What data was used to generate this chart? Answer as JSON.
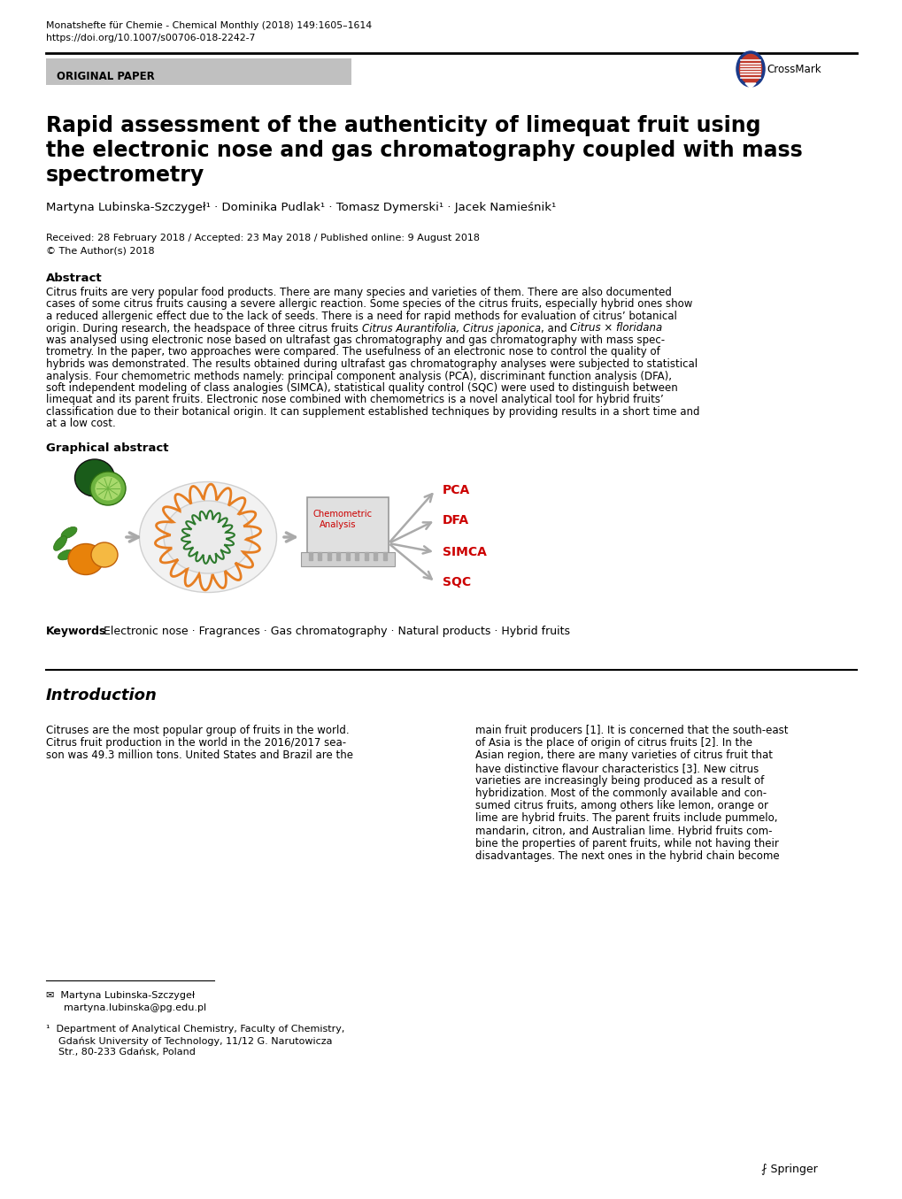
{
  "journal_line1": "Monatshefte für Chemie - Chemical Monthly (2018) 149:1605–1614",
  "journal_line2": "https://doi.org/10.1007/s00706-018-2242-7",
  "original_paper": "ORIGINAL PAPER",
  "title_line1": "Rapid assessment of the authenticity of limequat fruit using",
  "title_line2": "the electronic nose and gas chromatography coupled with mass",
  "title_line3": "spectrometry",
  "authors": "Martyna Lubinska-Szczygeł¹ · Dominika Pudlak¹ · Tomasz Dymerski¹ · Jacek Namieśnik¹",
  "received": "Received: 28 February 2018 / Accepted: 23 May 2018 / Published online: 9 August 2018",
  "copyright": "© The Author(s) 2018",
  "abstract_title": "Abstract",
  "abstract_lines": [
    "Citrus fruits are very popular food products. There are many species and varieties of them. There are also documented",
    "cases of some citrus fruits causing a severe allergic reaction. Some species of the citrus fruits, especially hybrid ones show",
    "a reduced allergenic effect due to the lack of seeds. There is a need for rapid methods for evaluation of citrus’ botanical",
    "origin. During research, the headspace of three citrus fruits __ITALIC_START__Citrus Aurantifolia, Citrus japonica__ITALIC_END__, and __ITALIC_START__Citrus × floridana__ITALIC_END__",
    "was analysed using electronic nose based on ultrafast gas chromatography and gas chromatography with mass spec-",
    "trometry. In the paper, two approaches were compared. The usefulness of an electronic nose to control the quality of",
    "hybrids was demonstrated. The results obtained during ultrafast gas chromatography analyses were subjected to statistical",
    "analysis. Four chemometric methods namely: principal component analysis (PCA), discriminant function analysis (DFA),",
    "soft independent modeling of class analogies (SIMCA), statistical quality control (SQC) were used to distinguish between",
    "limequat and its parent fruits. Electronic nose combined with chemometrics is a novel analytical tool for hybrid fruits’",
    "classification due to their botanical origin. It can supplement established techniques by providing results in a short time and",
    "at a low cost."
  ],
  "graphical_abstract_title": "Graphical abstract",
  "keywords_label": "Keywords",
  "keywords_text": "Electronic nose · Fragrances · Gas chromatography · Natural products · Hybrid fruits",
  "intro_title": "Introduction",
  "intro_left_lines": [
    "Citruses are the most popular group of fruits in the world.",
    "Citrus fruit production in the world in the 2016/2017 sea-",
    "son was 49.3 million tons. United States and Brazil are the"
  ],
  "intro_right_lines": [
    "main fruit producers [1]. It is concerned that the south-east",
    "of Asia is the place of origin of citrus fruits [2]. In the",
    "Asian region, there are many varieties of citrus fruit that",
    "have distinctive flavour characteristics [3]. New citrus",
    "varieties are increasingly being produced as a result of",
    "hybridization. Most of the commonly available and con-",
    "sumed citrus fruits, among others like lemon, orange or",
    "lime are hybrid fruits. The parent fruits include pummelo,",
    "mandarin, citron, and Australian lime. Hybrid fruits com-",
    "bine the properties of parent fruits, while not having their",
    "disadvantages. The next ones in the hybrid chain become"
  ],
  "footnote_name": "Martyna Lubinska-Szczygeł",
  "footnote_email": "martyna.lubinska@pg.edu.pl",
  "footnote_dept": "Department of Analytical Chemistry, Faculty of Chemistry,",
  "footnote_univ": "Gdańsk University of Technology, 11/12 G. Narutowicza",
  "footnote_addr": "Str., 80-233 Gdańsk, Poland",
  "graphical_labels": [
    "PCA",
    "DFA",
    "SIMCA",
    "SQC"
  ],
  "chemometric_label1": "Chemometric",
  "chemometric_label2": "Analysis",
  "bg_color": "#ffffff",
  "original_paper_bg": "#c0c0c0",
  "graphical_label_color": "#cc0000",
  "arrow_color": "#aaaaaa",
  "line_color": "#000000"
}
